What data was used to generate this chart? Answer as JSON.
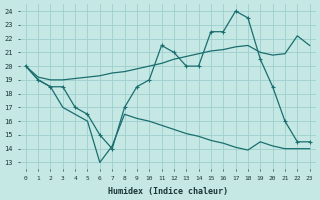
{
  "xlabel": "Humidex (Indice chaleur)",
  "bg_color": "#c5e8e5",
  "grid_color": "#9ecece",
  "line_color": "#1a6e6e",
  "xlim": [
    -0.5,
    23.5
  ],
  "ylim": [
    12.5,
    24.5
  ],
  "yticks": [
    13,
    14,
    15,
    16,
    17,
    18,
    19,
    20,
    21,
    22,
    23,
    24
  ],
  "xticks": [
    0,
    1,
    2,
    3,
    4,
    5,
    6,
    7,
    8,
    9,
    10,
    11,
    12,
    13,
    14,
    15,
    16,
    17,
    18,
    19,
    20,
    21,
    22,
    23
  ],
  "line_top_x": [
    0,
    1,
    2,
    3,
    4,
    5,
    6,
    7,
    8,
    9,
    10,
    11,
    12,
    13,
    14,
    15,
    16,
    17,
    18,
    19,
    20,
    21,
    22,
    23
  ],
  "line_top_y": [
    20,
    19,
    18.5,
    18.5,
    17,
    16.5,
    15,
    14,
    17,
    18.5,
    19,
    21.5,
    21,
    20,
    20,
    22.5,
    22.5,
    24,
    23.5,
    20.5,
    18.5,
    16,
    14.5,
    14.5
  ],
  "line_mid_x": [
    0,
    1,
    2,
    3,
    4,
    5,
    6,
    7,
    8,
    9,
    10,
    11,
    12,
    13,
    14,
    15,
    16,
    17,
    18,
    19,
    20,
    21,
    22,
    23
  ],
  "line_mid_y": [
    20,
    19.2,
    19.0,
    19.0,
    19.1,
    19.2,
    19.3,
    19.5,
    19.6,
    19.8,
    20.0,
    20.2,
    20.5,
    20.7,
    20.9,
    21.1,
    21.2,
    21.4,
    21.5,
    21.0,
    20.8,
    20.9,
    22.2,
    21.5
  ],
  "line_bot_x": [
    0,
    1,
    2,
    3,
    4,
    5,
    6,
    7,
    8,
    9,
    10,
    11,
    12,
    13,
    14,
    15,
    16,
    17,
    18,
    19,
    20,
    21,
    22,
    23
  ],
  "line_bot_y": [
    20,
    19,
    18.5,
    17,
    16.5,
    16,
    13,
    14.2,
    16.5,
    16.2,
    16.0,
    15.7,
    15.4,
    15.1,
    14.9,
    14.6,
    14.4,
    14.1,
    13.9,
    14.5,
    14.2,
    14.0,
    14.0,
    14.0
  ]
}
